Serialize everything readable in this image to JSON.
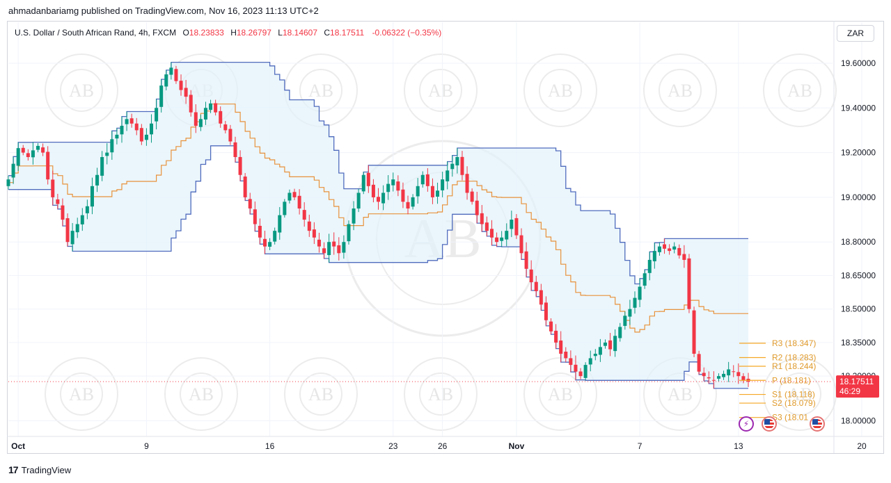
{
  "header": {
    "publisher_line": "ahmadanbariamg published on TradingView.com, Nov 16, 2023 11:13 UTC+2"
  },
  "legend": {
    "symbol": "U.S. Dollar / South African Rand, 4h, FXCM",
    "o_label": "O",
    "o_value": "18.23833",
    "h_label": "H",
    "h_value": "18.26797",
    "l_label": "L",
    "l_value": "18.14607",
    "c_label": "C",
    "c_value": "18.17511",
    "change": "-0.06322 (−0.35%)"
  },
  "currency_button": "ZAR",
  "footer": {
    "brand": "TradingView",
    "logo_text": "17"
  },
  "colors": {
    "bull": "#089981",
    "bear": "#f23645",
    "channel_line": "#4f6bbd",
    "channel_fill": "#e3f2fb",
    "midline": "#e8913a",
    "pivot": "#f5a623",
    "price_tag": "#f23645",
    "grid": "#f0f3fa"
  },
  "icons": {
    "event_bolt": "lightning-icon",
    "flag": "us-flag-icon"
  },
  "watermark_text": "AB",
  "chart_data": {
    "type": "candlestick",
    "x_ticks": [
      "Oct",
      "9",
      "16",
      "23",
      "26",
      "Nov",
      "7",
      "13",
      "20"
    ],
    "x_tick_index": [
      2,
      28,
      53,
      78,
      88,
      103,
      128,
      148,
      173
    ],
    "ylim": [
      17.93,
      19.69
    ],
    "y_ticks": [
      {
        "value": 19.6,
        "label": "19.60000"
      },
      {
        "value": 19.4,
        "label": "19.40000"
      },
      {
        "value": 19.2,
        "label": "19.20000"
      },
      {
        "value": 19.0,
        "label": "19.00000"
      },
      {
        "value": 18.8,
        "label": "18.80000"
      },
      {
        "value": 18.65,
        "label": "18.65000"
      },
      {
        "value": 18.5,
        "label": "18.50000"
      },
      {
        "value": 18.35,
        "label": "18.35000"
      },
      {
        "value": 18.2,
        "label": "18.20000"
      },
      {
        "value": 18.0,
        "label": "18.00000"
      }
    ],
    "price_tag": {
      "value": 18.17511,
      "label": "18.17511",
      "countdown": "46:29"
    },
    "pivots": [
      {
        "label": "R3 (18.347)",
        "value": 18.347
      },
      {
        "label": "R2 (18.283)",
        "value": 18.283
      },
      {
        "label": "R1 (18.244)",
        "value": 18.244
      },
      {
        "label": "P (18.181)",
        "value": 18.181
      },
      {
        "label": "S1 (18.118)",
        "value": 18.118
      },
      {
        "label": "S2 (18.079)",
        "value": 18.079
      },
      {
        "label": "S3 (18.01",
        "value": 18.015
      }
    ],
    "closes": [
      19.08,
      19.15,
      19.22,
      19.2,
      19.18,
      19.21,
      19.23,
      19.2,
      19.08,
      19.0,
      18.97,
      18.9,
      18.8,
      18.85,
      18.88,
      18.92,
      18.96,
      19.05,
      19.1,
      19.18,
      19.2,
      19.26,
      19.28,
      19.32,
      19.35,
      19.33,
      19.3,
      19.25,
      19.28,
      19.33,
      19.4,
      19.5,
      19.55,
      19.58,
      19.52,
      19.48,
      19.45,
      19.38,
      19.32,
      19.35,
      19.4,
      19.42,
      19.38,
      19.33,
      19.3,
      19.25,
      19.18,
      19.1,
      19.0,
      18.95,
      18.88,
      18.82,
      18.78,
      18.8,
      18.85,
      18.92,
      18.98,
      19.02,
      19.0,
      18.95,
      18.9,
      18.85,
      18.82,
      18.78,
      18.75,
      18.8,
      18.78,
      18.75,
      18.8,
      18.88,
      18.95,
      19.02,
      19.1,
      19.05,
      19.0,
      18.98,
      19.02,
      19.06,
      19.08,
      19.03,
      18.98,
      18.95,
      19.0,
      19.05,
      19.1,
      19.05,
      19.0,
      19.03,
      19.08,
      19.12,
      19.15,
      19.18,
      19.1,
      19.02,
      18.98,
      18.92,
      18.88,
      18.85,
      18.82,
      18.8,
      18.82,
      18.85,
      18.9,
      18.83,
      18.75,
      18.68,
      18.62,
      18.58,
      18.52,
      18.45,
      18.4,
      18.35,
      18.3,
      18.28,
      18.25,
      18.22,
      18.2,
      18.25,
      18.28,
      18.3,
      18.33,
      18.35,
      18.32,
      18.38,
      18.42,
      18.47,
      18.5,
      18.55,
      18.6,
      18.66,
      18.72,
      18.76,
      18.78,
      18.77,
      18.76,
      18.78,
      18.74,
      18.72,
      18.5,
      18.3,
      18.22,
      18.2,
      18.19,
      18.18,
      18.2,
      18.21,
      18.23,
      18.22,
      18.2,
      18.18,
      18.175
    ]
  }
}
